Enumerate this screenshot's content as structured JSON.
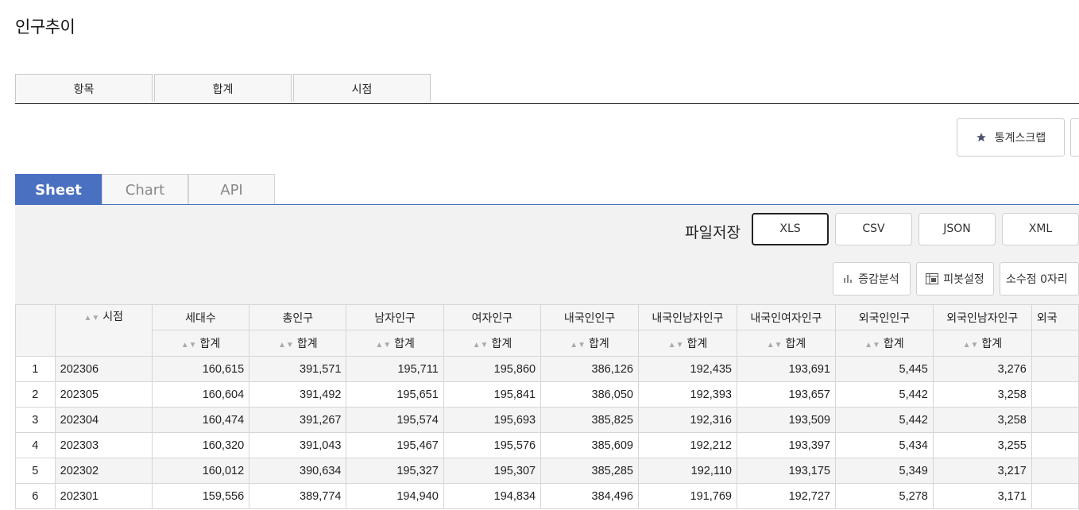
{
  "page_title": "인구추이",
  "top_tabs": [
    "항목",
    "합계",
    "시점"
  ],
  "scrap_label": "통계스크랩",
  "view_tabs": [
    "Sheet",
    "Chart",
    "API"
  ],
  "file_save_label": "파일저장",
  "formats": [
    "XLS",
    "CSV",
    "JSON",
    "XML"
  ],
  "tools": {
    "increase": "증감분석",
    "pivot": "피봇설정",
    "decimal": "소수점 0자리"
  },
  "table": {
    "time_header": "시점",
    "columns": [
      "세대수",
      "총인구",
      "남자인구",
      "여자인구",
      "내국인인구",
      "내국인남자인구",
      "내국인여자인구",
      "외국인인구",
      "외국인남자인구",
      "외국"
    ],
    "sub_header": "합계",
    "rows": [
      {
        "no": "1",
        "time": "202306",
        "values": [
          "160,615",
          "391,571",
          "195,711",
          "195,860",
          "386,126",
          "192,435",
          "193,691",
          "5,445",
          "3,276",
          ""
        ]
      },
      {
        "no": "2",
        "time": "202305",
        "values": [
          "160,604",
          "391,492",
          "195,651",
          "195,841",
          "386,050",
          "192,393",
          "193,657",
          "5,442",
          "3,258",
          ""
        ]
      },
      {
        "no": "3",
        "time": "202304",
        "values": [
          "160,474",
          "391,267",
          "195,574",
          "195,693",
          "385,825",
          "192,316",
          "193,509",
          "5,442",
          "3,258",
          ""
        ]
      },
      {
        "no": "4",
        "time": "202303",
        "values": [
          "160,320",
          "391,043",
          "195,467",
          "195,576",
          "385,609",
          "192,212",
          "193,397",
          "5,434",
          "3,255",
          ""
        ]
      },
      {
        "no": "5",
        "time": "202302",
        "values": [
          "160,012",
          "390,634",
          "195,327",
          "195,307",
          "385,285",
          "192,110",
          "193,175",
          "5,349",
          "3,217",
          ""
        ]
      },
      {
        "no": "6",
        "time": "202301",
        "values": [
          "159,556",
          "389,774",
          "194,940",
          "194,834",
          "384,496",
          "191,769",
          "192,727",
          "5,278",
          "3,171",
          ""
        ]
      }
    ]
  },
  "colors": {
    "accent": "#4a70c2",
    "toolbar_bg": "#f2f2f2"
  }
}
